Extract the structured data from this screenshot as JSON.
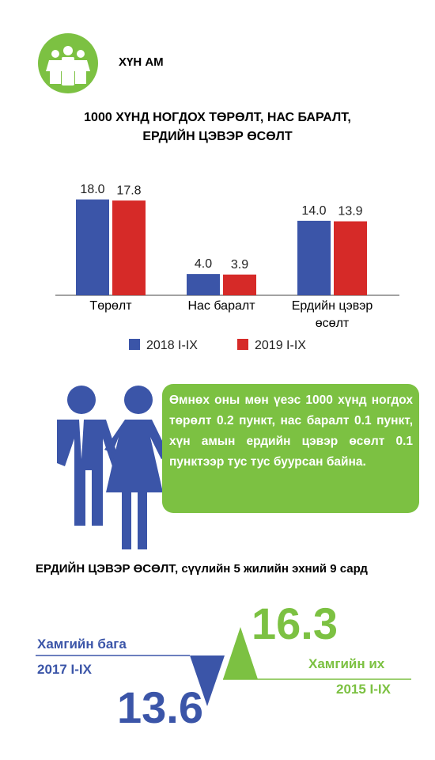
{
  "header": {
    "title": "ХҮН АМ"
  },
  "chart_data": {
    "type": "bar",
    "title_lines": [
      "1000 ХҮНД НОГДОХ ТӨРӨЛТ, НАС БАРАЛТ,",
      "ЕРДИЙН ЦЭВЭР ӨСӨЛТ"
    ],
    "categories": [
      "Төрөлт",
      "Нас баралт",
      "Ердийн цэвэр өсөлт"
    ],
    "series": [
      {
        "name": "2018 I-IX",
        "color": "#3b55a8",
        "values": [
          18,
          4,
          14
        ],
        "value_labels": [
          "18.0",
          "4.0",
          "14.0"
        ]
      },
      {
        "name": "2019 I-IX",
        "color": "#d62a28",
        "values": [
          17.8,
          3.9,
          13.9
        ]
      }
    ]
  },
  "note": "Өмнөх оны мөн үеэс 1000 хүнд ногдох төрөлт 0.2 пункт, нас баралт 0.1 пункт, хүн амын ердийн цэвэр өсөлт 0.1 пунктээр тус тус буурсан байна.",
  "growth": {
    "title": "ЕРДИЙН ЦЭВЭР ӨСӨЛТ,",
    "subtitle": "сүүлийн 5 жилийн эхний 9 сард",
    "min": {
      "label": "Хамгийн бага",
      "period": "2017 I-IX",
      "value": 13.6
    },
    "max": {
      "label": "Хамгийн их",
      "period": "2015 I-IX",
      "value": 16.3
    }
  }
}
